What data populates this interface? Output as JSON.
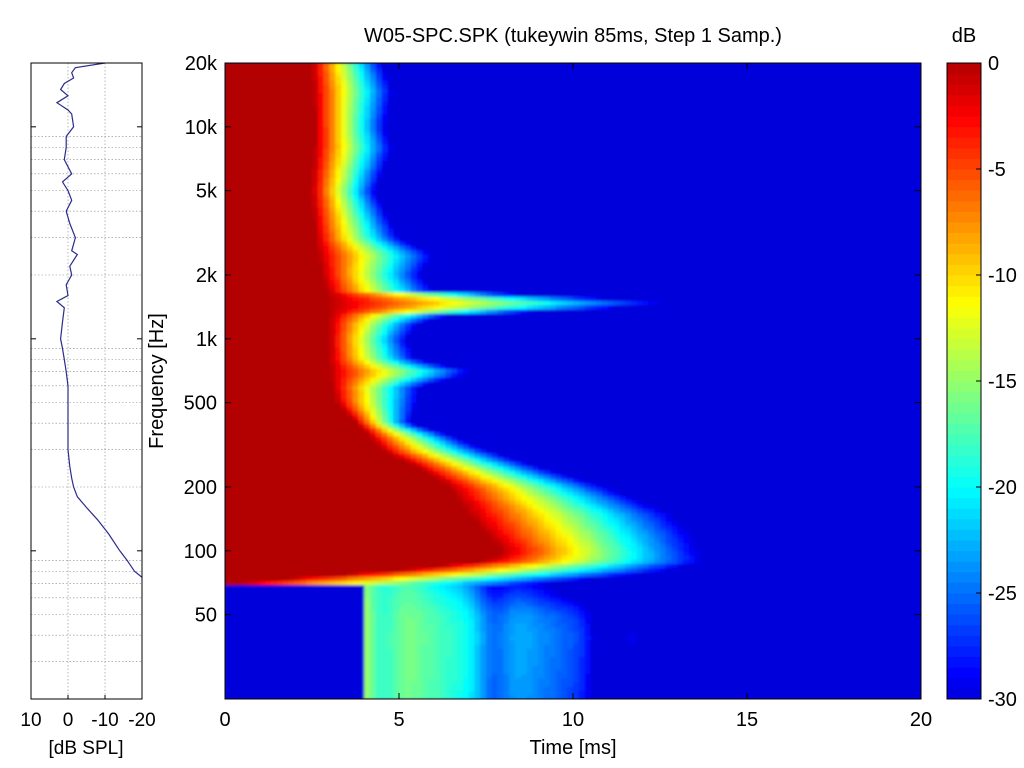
{
  "chart_data": [
    {
      "type": "line",
      "xlabel": "[dB SPL]",
      "xticks": [
        "10",
        "0",
        "-10",
        "-20"
      ],
      "xlim": [
        10,
        -20
      ],
      "yscale": "log",
      "ylim": [
        20,
        20000
      ],
      "grid": true,
      "series": [
        {
          "color": "#2b2b8c",
          "points": [
            [
              20000,
              -10
            ],
            [
              19000,
              -2
            ],
            [
              18000,
              -1
            ],
            [
              17000,
              -1.5
            ],
            [
              16000,
              1
            ],
            [
              15000,
              2
            ],
            [
              14000,
              0
            ],
            [
              13000,
              3
            ],
            [
              12000,
              0
            ],
            [
              11500,
              -1
            ],
            [
              10000,
              -1.5
            ],
            [
              9000,
              0.5
            ],
            [
              8000,
              0.5
            ],
            [
              7000,
              1
            ],
            [
              6000,
              -1
            ],
            [
              5500,
              1.5
            ],
            [
              5000,
              0
            ],
            [
              4500,
              -1
            ],
            [
              4000,
              0.5
            ],
            [
              3500,
              -0.5
            ],
            [
              3000,
              -2
            ],
            [
              2600,
              -1
            ],
            [
              2500,
              -2.5
            ],
            [
              2200,
              -0.5
            ],
            [
              2000,
              -1
            ],
            [
              1800,
              0.5
            ],
            [
              1600,
              0
            ],
            [
              1500,
              3
            ],
            [
              1400,
              1
            ],
            [
              1200,
              1.5
            ],
            [
              1000,
              2
            ],
            [
              900,
              1.5
            ],
            [
              800,
              1
            ],
            [
              700,
              0.5
            ],
            [
              600,
              0
            ],
            [
              500,
              0
            ],
            [
              400,
              0
            ],
            [
              300,
              0
            ],
            [
              250,
              -0.5
            ],
            [
              220,
              -1
            ],
            [
              200,
              -1.5
            ],
            [
              180,
              -2.5
            ],
            [
              160,
              -5
            ],
            [
              140,
              -8
            ],
            [
              120,
              -11
            ],
            [
              100,
              -14
            ],
            [
              90,
              -16
            ],
            [
              80,
              -18
            ],
            [
              75,
              -20
            ]
          ]
        }
      ]
    },
    {
      "type": "heatmap",
      "title": "W05-SPC.SPK (tukeywin 85ms, Step 1 Samp.)",
      "xlabel": "Time [ms]",
      "ylabel": "Frequency [Hz]",
      "xlim": [
        0,
        20
      ],
      "ylim": [
        20,
        20000
      ],
      "yscale": "log",
      "xticks": [
        "0",
        "5",
        "10",
        "15",
        "20"
      ],
      "yticks": [
        "20k",
        "10k",
        "5k",
        "2k",
        "1k",
        "500",
        "200",
        "100",
        "50"
      ],
      "colorbar": {
        "label": "dB",
        "range": [
          -30,
          0
        ],
        "ticks": [
          "0",
          "-5",
          "-10",
          "-15",
          "-20",
          "-25",
          "-30"
        ],
        "colormap": "jet"
      },
      "decay_ms": [
        [
          20000,
          4.5
        ],
        [
          15000,
          4.8
        ],
        [
          10000,
          4.6
        ],
        [
          8000,
          4.8
        ],
        [
          6000,
          4.5
        ],
        [
          5000,
          4.3
        ],
        [
          4000,
          4.6
        ],
        [
          3000,
          5.0
        ],
        [
          2500,
          6.0
        ],
        [
          2000,
          5.6
        ],
        [
          1700,
          6.0
        ],
        [
          1500,
          12.8
        ],
        [
          1400,
          11.0
        ],
        [
          1300,
          6.5
        ],
        [
          1200,
          5.6
        ],
        [
          1000,
          5.2
        ],
        [
          800,
          5.5
        ],
        [
          700,
          7.2
        ],
        [
          600,
          5.6
        ],
        [
          500,
          5.5
        ],
        [
          400,
          5.3
        ],
        [
          350,
          6.5
        ],
        [
          300,
          7.5
        ],
        [
          250,
          9.0
        ],
        [
          200,
          11.0
        ],
        [
          150,
          12.8
        ],
        [
          120,
          13.4
        ],
        [
          100,
          13.6
        ],
        [
          90,
          13.8
        ],
        [
          80,
          12.6
        ],
        [
          70,
          9.0
        ],
        [
          60,
          10.0
        ],
        [
          50,
          11.5
        ],
        [
          40,
          12.0
        ],
        [
          30,
          11.8
        ],
        [
          20,
          11.5
        ]
      ],
      "ridge_ms": [
        [
          20000,
          2.5
        ],
        [
          10000,
          2.6
        ],
        [
          5000,
          2.5
        ],
        [
          3000,
          2.6
        ],
        [
          2000,
          2.8
        ],
        [
          1500,
          3.0
        ],
        [
          1000,
          3.0
        ],
        [
          700,
          3.0
        ],
        [
          500,
          3.2
        ],
        [
          400,
          3.8
        ],
        [
          300,
          4.5
        ],
        [
          250,
          5.5
        ],
        [
          200,
          6.5
        ],
        [
          150,
          7.0
        ],
        [
          120,
          7.5
        ],
        [
          100,
          8.0
        ],
        [
          90,
          7.5
        ],
        [
          80,
          4.5
        ],
        [
          75,
          2.0
        ],
        [
          70,
          0
        ],
        [
          20,
          0
        ]
      ],
      "low_cutoff_hz": 70
    }
  ]
}
